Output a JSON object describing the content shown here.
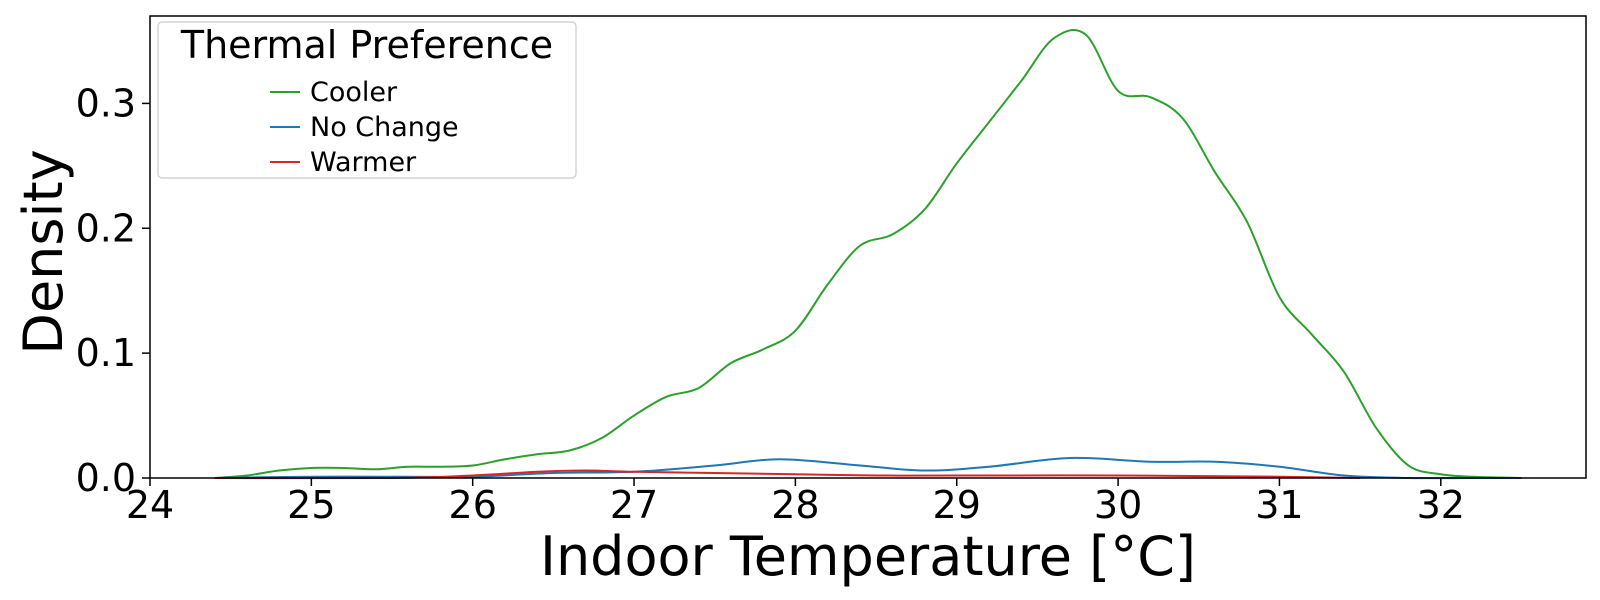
{
  "chart_data": {
    "type": "line",
    "xlabel": "Indoor Temperature [°C]",
    "ylabel": "Density",
    "xlim": [
      24,
      32.9
    ],
    "ylim": [
      0,
      0.37
    ],
    "xticks": [
      24,
      25,
      26,
      27,
      28,
      29,
      30,
      31,
      32
    ],
    "xtick_labels": [
      "24",
      "25",
      "26",
      "27",
      "28",
      "29",
      "30",
      "31",
      "32"
    ],
    "yticks": [
      0.0,
      0.1,
      0.2,
      0.3
    ],
    "ytick_labels": [
      "0.0",
      "0.1",
      "0.2",
      "0.3"
    ],
    "grid": false,
    "legend": {
      "title": "Thermal Preference",
      "placement": "top-left",
      "entries": [
        "Cooler",
        "No Change",
        "Warmer"
      ]
    },
    "series": [
      {
        "name": "Cooler",
        "color": "#2ca02c",
        "x": [
          24.4,
          24.6,
          24.8,
          25.0,
          25.2,
          25.4,
          25.6,
          25.8,
          26.0,
          26.2,
          26.4,
          26.6,
          26.8,
          27.0,
          27.2,
          27.4,
          27.6,
          27.8,
          28.0,
          28.2,
          28.4,
          28.6,
          28.8,
          29.0,
          29.2,
          29.4,
          29.6,
          29.8,
          30.0,
          30.2,
          30.4,
          30.6,
          30.8,
          31.0,
          31.2,
          31.4,
          31.6,
          31.8,
          32.0,
          32.2,
          32.5
        ],
        "y": [
          0.0,
          0.002,
          0.006,
          0.008,
          0.008,
          0.007,
          0.009,
          0.009,
          0.01,
          0.015,
          0.019,
          0.022,
          0.032,
          0.05,
          0.065,
          0.072,
          0.092,
          0.103,
          0.118,
          0.155,
          0.186,
          0.195,
          0.215,
          0.252,
          0.285,
          0.318,
          0.352,
          0.355,
          0.31,
          0.305,
          0.288,
          0.245,
          0.205,
          0.145,
          0.115,
          0.085,
          0.04,
          0.01,
          0.003,
          0.001,
          0.0
        ]
      },
      {
        "name": "No Change",
        "color": "#1f77b4",
        "x": [
          24.4,
          25.0,
          25.6,
          26.0,
          26.5,
          27.0,
          27.5,
          27.9,
          28.4,
          28.8,
          29.2,
          29.7,
          30.2,
          30.6,
          31.0,
          31.4,
          31.8,
          32.2,
          32.5
        ],
        "y": [
          0.0,
          0.001,
          0.001,
          0.001,
          0.004,
          0.005,
          0.01,
          0.015,
          0.01,
          0.006,
          0.009,
          0.016,
          0.013,
          0.013,
          0.009,
          0.002,
          0.0,
          0.0,
          0.0
        ]
      },
      {
        "name": "Warmer",
        "color": "#d62728",
        "x": [
          24.4,
          25.5,
          26.0,
          26.4,
          26.7,
          27.0,
          27.5,
          28.0,
          28.5,
          29.0,
          30.0,
          31.0,
          31.5
        ],
        "y": [
          0.0,
          0.0,
          0.002,
          0.005,
          0.006,
          0.005,
          0.004,
          0.003,
          0.002,
          0.002,
          0.002,
          0.001,
          0.0
        ]
      }
    ]
  }
}
